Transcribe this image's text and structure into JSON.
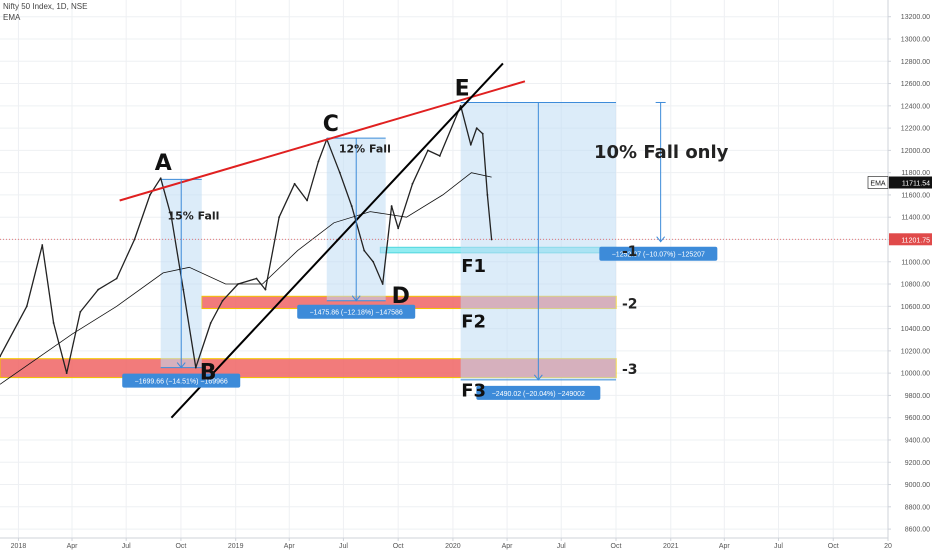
{
  "header": {
    "symbol_line": "Nifty 50 Index, 1D, NSE",
    "indicator": "EMA"
  },
  "colors": {
    "price": "#222222",
    "ema": "#111111",
    "trend_red": "#e02020",
    "trend_black": "#000000",
    "box_blue": "#bfdcf4",
    "measure_blue": "#3d8bd9",
    "zone_red": "#f06464",
    "zone_cyan": "#7fe9ef"
  },
  "chart_data": {
    "type": "line",
    "title": "",
    "xlabel": "",
    "ylabel": "",
    "y_ticks": [
      8600,
      8800,
      9000,
      9200,
      9400,
      9600,
      9800,
      10000,
      10200,
      10400,
      10600,
      10800,
      11000,
      11200,
      11400,
      11600,
      11800,
      12000,
      12200,
      12400,
      12600,
      12800,
      13000,
      13200
    ],
    "y_tick_labels": [
      "8600.00",
      "8800.00",
      "9000.00",
      "9200.00",
      "9400.00",
      "9600.00",
      "9800.00",
      "10000.00",
      "10200.00",
      "10400.00",
      "10600.00",
      "10800.00",
      "11000.00",
      "11200.00",
      "11400.00",
      "11600.00",
      "11800.00",
      "12000.00",
      "12200.00",
      "12400.00",
      "12600.00",
      "12800.00",
      "13000.00",
      "13200.00"
    ],
    "ylim": [
      8520,
      13350
    ],
    "x_ticks": [
      "2018-01-01",
      "2018-04-01",
      "2018-07-01",
      "2018-10-01",
      "2019-01-01",
      "2019-04-01",
      "2019-07-01",
      "2019-10-01",
      "2020-01-01",
      "2020-04-01",
      "2020-07-01",
      "2020-10-01",
      "2021-01-01",
      "2021-04-01",
      "2021-07-01",
      "2021-10-01",
      "2022-01-01"
    ],
    "x_tick_labels": [
      "2018",
      "Apr",
      "Jul",
      "Oct",
      "2019",
      "Apr",
      "Jul",
      "Oct",
      "2020",
      "Apr",
      "Jul",
      "Oct",
      "2021",
      "Apr",
      "Jul",
      "Oct",
      "20"
    ],
    "xlim": [
      "2017-12-01",
      "2022-01-01"
    ],
    "price": {
      "x": [
        "2017-12-01",
        "2018-01-15",
        "2018-02-10",
        "2018-03-01",
        "2018-03-23",
        "2018-04-15",
        "2018-05-15",
        "2018-06-15",
        "2018-07-15",
        "2018-08-10",
        "2018-08-28",
        "2018-09-15",
        "2018-10-05",
        "2018-10-26",
        "2018-11-20",
        "2018-12-10",
        "2019-01-05",
        "2019-02-05",
        "2019-02-20",
        "2019-03-15",
        "2019-04-10",
        "2019-05-01",
        "2019-05-20",
        "2019-06-03",
        "2019-06-25",
        "2019-07-15",
        "2019-08-05",
        "2019-08-20",
        "2019-09-05",
        "2019-09-20",
        "2019-10-01",
        "2019-10-25",
        "2019-11-20",
        "2019-12-10",
        "2020-01-14",
        "2020-01-31",
        "2020-02-10",
        "2020-02-20",
        "2020-02-28",
        "2020-03-06"
      ],
      "values": [
        10150,
        10600,
        11150,
        10450,
        10000,
        10550,
        10750,
        10850,
        11200,
        11600,
        11750,
        11400,
        10750,
        10050,
        10450,
        10650,
        10800,
        10850,
        10750,
        11400,
        11700,
        11550,
        11900,
        12100,
        11800,
        11500,
        11100,
        11000,
        10800,
        11500,
        11300,
        11700,
        12000,
        11950,
        12400,
        12050,
        12200,
        12150,
        11600,
        11200
      ]
    },
    "ema": {
      "x": [
        "2017-12-01",
        "2018-04-01",
        "2018-06-15",
        "2018-09-01",
        "2018-10-15",
        "2018-12-15",
        "2019-02-15",
        "2019-04-15",
        "2019-06-15",
        "2019-08-15",
        "2019-10-15",
        "2019-12-15",
        "2020-02-01",
        "2020-03-06"
      ],
      "values": [
        9900,
        10350,
        10600,
        10900,
        10950,
        10800,
        10800,
        11100,
        11350,
        11450,
        11400,
        11600,
        11800,
        11760
      ]
    },
    "last_price_label": "11201.75",
    "ema_label_name": "EMA",
    "ema_label_value": "11711.54",
    "pivots": [
      {
        "label": "A",
        "date": "2018-08-28",
        "value": 11750
      },
      {
        "label": "B",
        "date": "2018-10-26",
        "value": 10050
      },
      {
        "label": "C",
        "date": "2019-06-03",
        "value": 12100
      },
      {
        "label": "D",
        "date": "2019-09-10",
        "value": 10700
      },
      {
        "label": "E",
        "date": "2020-01-14",
        "value": 12420
      }
    ],
    "fall_boxes": [
      {
        "name": "15% Fall",
        "from": "2018-08-28",
        "to": "2018-11-05",
        "top": 11740,
        "bottom": 10050,
        "readout": "−1699.66 (−14.51%) −169966"
      },
      {
        "name": "12% Fall",
        "from": "2019-06-03",
        "to": "2019-09-10",
        "top": 12110,
        "bottom": 10650,
        "readout": "−1475.86 (−12.18%) −147586"
      },
      {
        "name": "",
        "from": "2020-01-14",
        "to": "2020-10-01",
        "top": 12430,
        "bottom": 9940,
        "readout": "−2490.02 (−20.04%) −249002"
      },
      {
        "name": "10% Fall only",
        "from": "2020-12-10",
        "to": "2020-12-20",
        "top": 12430,
        "bottom": 11180,
        "readout": "−1252.07 (−10.07%) −125207"
      }
    ],
    "zones": [
      {
        "name": "F1",
        "tag": "-1",
        "from": "2019-09-01",
        "to": "2020-10-01",
        "top": 11130,
        "bottom": 11080,
        "color": "cyan"
      },
      {
        "name": "F2",
        "tag": "-2",
        "from": "2018-11-05",
        "to": "2020-10-01",
        "top": 10690,
        "bottom": 10580,
        "color": "red"
      },
      {
        "name": "F3",
        "tag": "-3",
        "from": "2017-12-01",
        "to": "2020-10-01",
        "top": 10130,
        "bottom": 9960,
        "color": "red"
      }
    ],
    "trendlines": [
      {
        "name": "resistance",
        "color": "red",
        "from": {
          "date": "2018-06-20",
          "value": 11550
        },
        "to": {
          "date": "2020-05-01",
          "value": 12620
        }
      },
      {
        "name": "support",
        "color": "black",
        "from": {
          "date": "2018-09-15",
          "value": 9600
        },
        "to": {
          "date": "2020-03-25",
          "value": 12780
        }
      }
    ],
    "grid": true
  }
}
